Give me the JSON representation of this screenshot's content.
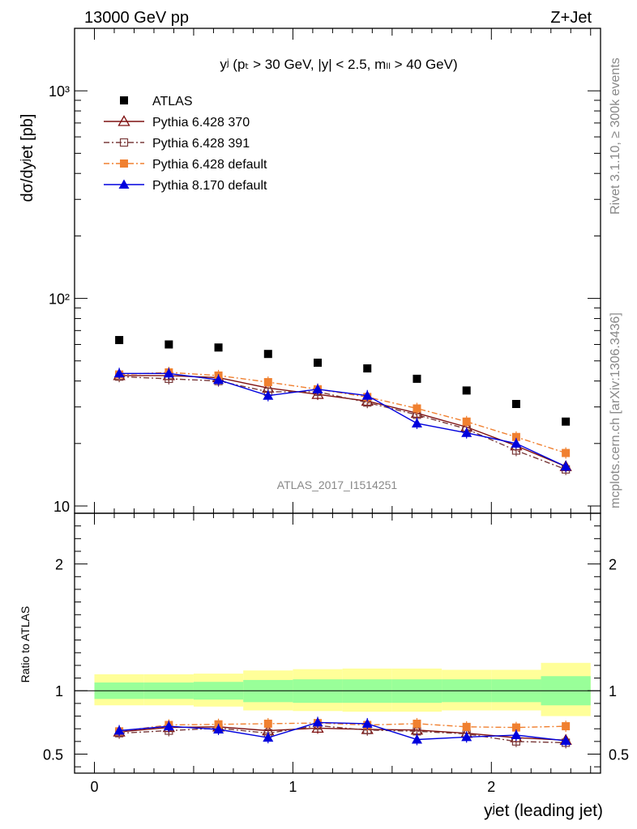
{
  "header": {
    "left": "13000 GeV pp",
    "right": "Z+Jet"
  },
  "side_labels": {
    "rivet": "Rivet 3.1.10, ≥ 300k events",
    "mcplots": "mcplots.cern.ch [arXiv:1306.3436]"
  },
  "chart_data": [
    {
      "type": "scatter",
      "panel": "main",
      "title": "yʲ (pₜ > 30 GeV, |y| < 2.5, mₗₗ > 40 GeV)",
      "ylabel": "dσ/dyʲet [pb]",
      "watermark": "ATLAS_2017_I1514251",
      "yscale": "log",
      "xlim": [
        -0.1,
        2.55
      ],
      "ylim": [
        10,
        2000
      ],
      "yticks": [
        "10",
        "10²",
        "10³"
      ],
      "legend_position": "top-left",
      "x": [
        0.125,
        0.375,
        0.625,
        0.875,
        1.125,
        1.375,
        1.625,
        1.875,
        2.125,
        2.375
      ],
      "xerr": 0.125,
      "series": [
        {
          "name": "ATLAS",
          "color": "#000000",
          "marker": "square",
          "line": "none",
          "values": [
            63,
            60,
            58,
            54,
            49,
            46,
            41,
            36,
            31,
            25.5
          ]
        },
        {
          "name": "Pythia 6.428 370",
          "color": "#7f1010",
          "marker": "triangle-open",
          "line": "solid",
          "values": [
            42.5,
            42.5,
            41.5,
            37,
            34.5,
            32,
            28,
            24,
            19.5,
            15.5
          ]
        },
        {
          "name": "Pythia 6.428 391",
          "color": "#7a3b3b",
          "marker": "square-open",
          "line": "dashdot",
          "values": [
            42,
            41,
            40,
            35.5,
            35.5,
            31.5,
            27.5,
            23.5,
            18.5,
            15
          ]
        },
        {
          "name": "Pythia 6.428 default",
          "color": "#f08030",
          "marker": "square",
          "line": "dashdot",
          "values": [
            43,
            44,
            42.5,
            39.5,
            36.5,
            33.5,
            29.5,
            25.5,
            21.5,
            18
          ]
        },
        {
          "name": "Pythia 8.170 default",
          "color": "#0000dd",
          "marker": "triangle",
          "line": "solid",
          "values": [
            43.5,
            43.5,
            40.5,
            34,
            36.5,
            34,
            25,
            22.5,
            20,
            15.5
          ]
        }
      ]
    },
    {
      "type": "scatter",
      "panel": "ratio",
      "ylabel": "Ratio to ATLAS",
      "xlabel": "yʲet (leading jet)",
      "xlim": [
        -0.1,
        2.55
      ],
      "ylim": [
        0.35,
        2.4
      ],
      "xticks": [
        "0",
        "1",
        "2"
      ],
      "yticks": [
        "0.5",
        "1",
        "2"
      ],
      "x": [
        0.125,
        0.375,
        0.625,
        0.875,
        1.125,
        1.375,
        1.625,
        1.875,
        2.125,
        2.375
      ],
      "xerr": 0.125,
      "bands": {
        "inner": {
          "color": "#99ff99",
          "lo": [
            0.935,
            0.935,
            0.93,
            0.91,
            0.905,
            0.905,
            0.905,
            0.91,
            0.91,
            0.885
          ],
          "hi": [
            1.065,
            1.065,
            1.07,
            1.085,
            1.09,
            1.09,
            1.09,
            1.09,
            1.09,
            1.115
          ]
        },
        "outer": {
          "color": "#ffff99",
          "lo": [
            0.885,
            0.885,
            0.875,
            0.845,
            0.84,
            0.835,
            0.835,
            0.845,
            0.845,
            0.8
          ],
          "hi": [
            1.13,
            1.13,
            1.135,
            1.16,
            1.17,
            1.175,
            1.175,
            1.165,
            1.165,
            1.22
          ]
        }
      },
      "series": [
        {
          "name": "Pythia 6.428 370",
          "color": "#7f1010",
          "marker": "triangle-open",
          "line": "solid",
          "values": [
            0.675,
            0.71,
            0.715,
            0.685,
            0.705,
            0.695,
            0.69,
            0.665,
            0.63,
            0.61
          ]
        },
        {
          "name": "Pythia 6.428 391",
          "color": "#7a3b3b",
          "marker": "square-open",
          "line": "dashdot",
          "values": [
            0.665,
            0.685,
            0.705,
            0.665,
            0.725,
            0.69,
            0.68,
            0.66,
            0.6,
            0.59
          ]
        },
        {
          "name": "Pythia 6.428 default",
          "color": "#f08030",
          "marker": "square",
          "line": "dashdot",
          "values": [
            0.68,
            0.73,
            0.735,
            0.74,
            0.745,
            0.73,
            0.74,
            0.715,
            0.71,
            0.72
          ]
        },
        {
          "name": "Pythia 8.170 default",
          "color": "#0000dd",
          "marker": "triangle",
          "line": "solid",
          "values": [
            0.685,
            0.72,
            0.695,
            0.63,
            0.75,
            0.74,
            0.615,
            0.635,
            0.65,
            0.605
          ]
        }
      ]
    }
  ]
}
